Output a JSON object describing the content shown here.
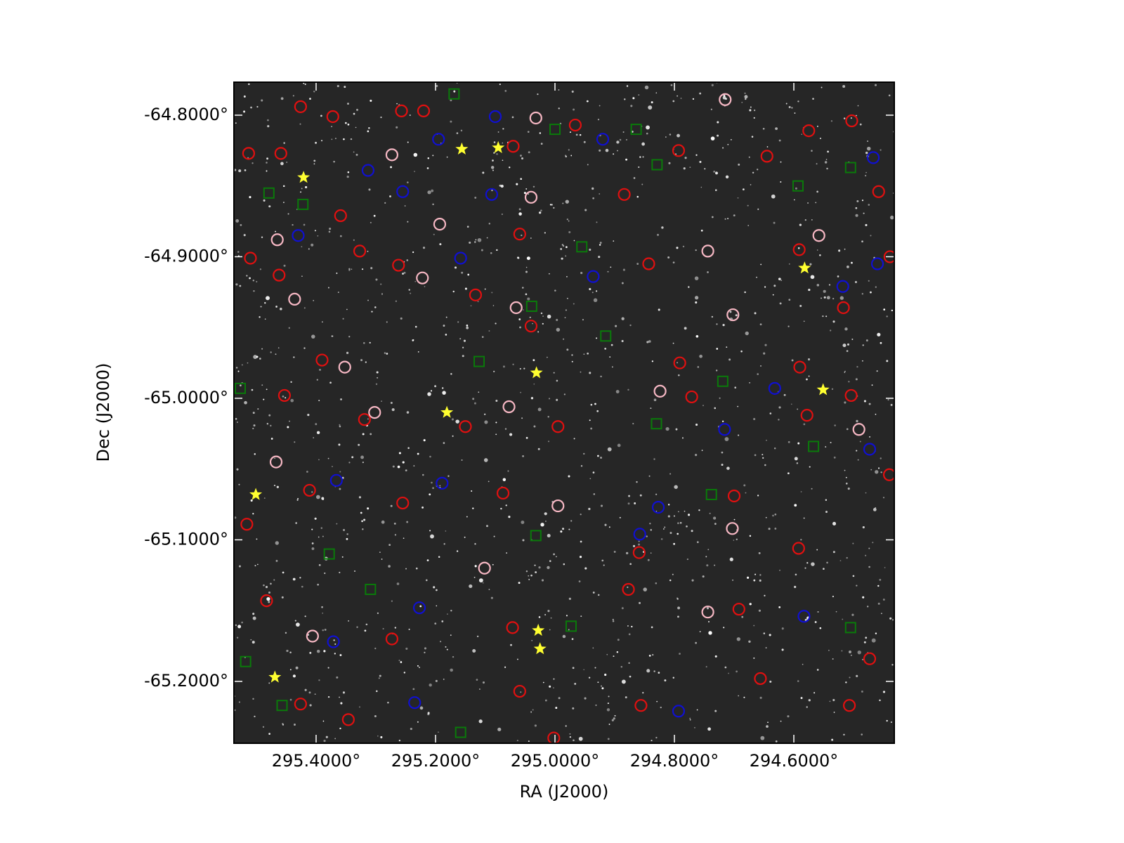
{
  "chart_data": {
    "type": "scatter",
    "xlabel": "RA (J2000)",
    "ylabel": "Dec (J2000)",
    "xlim": [
      295.5376,
      294.4318
    ],
    "ylim": [
      -65.2437,
      -64.7767
    ],
    "xticks": [
      {
        "value": 295.4,
        "label": "295.4000°"
      },
      {
        "value": 295.2,
        "label": "295.2000°"
      },
      {
        "value": 295.0,
        "label": "295.0000°"
      },
      {
        "value": 294.8,
        "label": "294.8000°"
      },
      {
        "value": 294.6,
        "label": "294.6000°"
      }
    ],
    "yticks": [
      {
        "value": -64.8,
        "label": "-64.8000°"
      },
      {
        "value": -64.9,
        "label": "-64.9000°"
      },
      {
        "value": -65.0,
        "label": "-65.0000°"
      },
      {
        "value": -65.1,
        "label": "-65.1000°"
      },
      {
        "value": -65.2,
        "label": "-65.2000°"
      }
    ],
    "series": [
      {
        "color": "#e01010",
        "marker": "circle",
        "x": [
          295.513,
          295.459,
          295.426,
          295.372,
          295.257,
          295.22,
          295.07,
          294.966,
          294.793,
          294.645,
          294.575,
          294.503,
          294.458,
          295.359,
          295.059,
          294.884,
          294.843,
          294.591,
          294.517,
          294.439,
          295.51,
          295.462,
          295.327,
          295.262,
          295.133,
          295.04,
          294.791,
          294.59,
          294.504,
          295.453,
          295.39,
          295.319,
          295.15,
          294.995,
          294.771,
          294.578,
          295.516,
          295.411,
          295.255,
          295.087,
          294.859,
          294.592,
          294.7,
          294.44,
          295.483,
          295.273,
          295.071,
          294.877,
          294.692,
          294.473,
          295.426,
          295.059,
          294.856,
          294.656,
          294.507,
          295.346,
          295.002
        ],
        "y": [
          -64.827,
          -64.827,
          -64.794,
          -64.801,
          -64.797,
          -64.797,
          -64.822,
          -64.807,
          -64.825,
          -64.829,
          -64.811,
          -64.804,
          -64.854,
          -64.871,
          -64.884,
          -64.856,
          -64.905,
          -64.895,
          -64.936,
          -64.9,
          -64.901,
          -64.913,
          -64.896,
          -64.906,
          -64.927,
          -64.949,
          -64.975,
          -64.978,
          -64.998,
          -64.998,
          -64.973,
          -65.015,
          -65.02,
          -65.02,
          -64.999,
          -65.012,
          -65.089,
          -65.065,
          -65.074,
          -65.067,
          -65.109,
          -65.106,
          -65.069,
          -65.054,
          -65.143,
          -65.17,
          -65.162,
          -65.135,
          -65.149,
          -65.184,
          -65.216,
          -65.207,
          -65.217,
          -65.198,
          -65.217,
          -65.227,
          -65.24
        ]
      },
      {
        "color": "#f7b8c4",
        "marker": "circle",
        "x": [
          295.032,
          294.715,
          295.273,
          295.04,
          295.193,
          295.465,
          294.558,
          294.744,
          295.222,
          295.436,
          295.065,
          294.702,
          295.352,
          294.824,
          295.077,
          295.302,
          294.491,
          295.467,
          294.995,
          294.703,
          295.118,
          294.744,
          295.406
        ],
        "y": [
          -64.802,
          -64.789,
          -64.828,
          -64.858,
          -64.877,
          -64.888,
          -64.885,
          -64.896,
          -64.915,
          -64.93,
          -64.936,
          -64.941,
          -64.978,
          -64.995,
          -65.006,
          -65.01,
          -65.022,
          -65.045,
          -65.076,
          -65.092,
          -65.12,
          -65.151,
          -65.168
        ]
      },
      {
        "color": "#1010d0",
        "marker": "circle",
        "x": [
          295.1,
          295.195,
          294.92,
          294.467,
          295.313,
          295.255,
          295.106,
          295.43,
          295.158,
          294.46,
          294.518,
          294.936,
          295.189,
          295.366,
          294.827,
          294.858,
          294.632,
          294.716,
          294.473,
          295.227,
          295.371,
          295.235,
          294.793,
          294.583
        ],
        "y": [
          -64.801,
          -64.817,
          -64.817,
          -64.83,
          -64.839,
          -64.854,
          -64.856,
          -64.885,
          -64.901,
          -64.905,
          -64.921,
          -64.914,
          -65.06,
          -65.058,
          -65.077,
          -65.096,
          -64.993,
          -65.022,
          -65.036,
          -65.148,
          -65.172,
          -65.215,
          -65.221,
          -65.154
        ]
      },
      {
        "color": "#0a7a0a",
        "marker": "square",
        "x": [
          295.169,
          295.0,
          294.864,
          294.829,
          294.505,
          294.593,
          295.479,
          295.422,
          294.955,
          295.039,
          294.915,
          295.127,
          295.527,
          294.719,
          294.83,
          294.567,
          294.738,
          295.032,
          295.378,
          295.309,
          294.973,
          294.505,
          295.518,
          295.457,
          295.158
        ],
        "y": [
          -64.785,
          -64.81,
          -64.81,
          -64.835,
          -64.837,
          -64.85,
          -64.855,
          -64.863,
          -64.893,
          -64.935,
          -64.956,
          -64.974,
          -64.993,
          -64.988,
          -65.018,
          -65.034,
          -65.068,
          -65.097,
          -65.11,
          -65.135,
          -65.161,
          -65.162,
          -65.186,
          -65.217,
          -65.236
        ]
      },
      {
        "color": "#ffff30",
        "marker": "star",
        "x": [
          295.156,
          295.095,
          295.421,
          294.582,
          295.031,
          294.551,
          295.181,
          295.501,
          295.028,
          295.025,
          295.469
        ],
        "y": [
          -64.824,
          -64.823,
          -64.844,
          -64.908,
          -64.982,
          -64.994,
          -65.01,
          -65.068,
          -65.164,
          -65.177,
          -65.197
        ]
      }
    ]
  }
}
